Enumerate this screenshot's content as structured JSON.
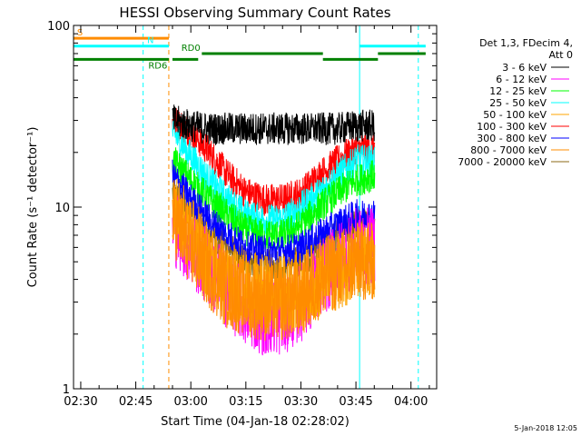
{
  "chart_data": {
    "type": "line",
    "title": "HESSI Observing Summary Count Rates",
    "xlabel": "Start Time (04-Jan-18 02:28:02)",
    "ylabel": "Count Rate (s⁻¹ detector⁻¹)",
    "xlim": [
      "02:28:02",
      "04:07:00"
    ],
    "ylim": [
      1,
      100
    ],
    "y_scale": "log",
    "x_ticks": [
      "02:30",
      "02:45",
      "03:00",
      "03:15",
      "03:30",
      "03:45",
      "04:00"
    ],
    "y_ticks": [
      {
        "value": 1,
        "label": "1"
      },
      {
        "value": 10,
        "label": "10"
      },
      {
        "value": 100,
        "label": "100"
      }
    ],
    "legend_header": [
      "Det 1,3, FDecim 4,",
      "Att 0"
    ],
    "legend_position": "right",
    "series": [
      {
        "name": "3 - 6 keV",
        "color": "#000000",
        "x": [
          "02:55",
          "03:00",
          "03:05",
          "03:10",
          "03:15",
          "03:20",
          "03:25",
          "03:30",
          "03:35",
          "03:40",
          "03:45",
          "03:50"
        ],
        "values": [
          30,
          28,
          27,
          27,
          27,
          27,
          27,
          27,
          27,
          27,
          28,
          28
        ]
      },
      {
        "name": "6 - 12 keV",
        "color": "#ff00ff",
        "x": [
          "02:55",
          "03:00",
          "03:05",
          "03:10",
          "03:15",
          "03:20",
          "03:25",
          "03:30",
          "03:35",
          "03:40",
          "03:45",
          "03:50"
        ],
        "values": [
          8,
          6,
          4.5,
          3.5,
          2.8,
          2.5,
          2.5,
          3,
          4,
          5,
          6,
          6
        ]
      },
      {
        "name": "12 - 25 keV",
        "color": "#00ff00",
        "x": [
          "02:55",
          "03:00",
          "03:05",
          "03:10",
          "03:15",
          "03:20",
          "03:25",
          "03:30",
          "03:35",
          "03:40",
          "03:45",
          "03:50"
        ],
        "values": [
          18,
          14,
          11,
          9,
          7.5,
          7,
          7,
          8,
          10,
          12,
          14,
          15
        ]
      },
      {
        "name": "25 - 50 keV",
        "color": "#00ffff",
        "x": [
          "02:55",
          "03:00",
          "03:05",
          "03:10",
          "03:15",
          "03:20",
          "03:25",
          "03:30",
          "03:35",
          "03:40",
          "03:45",
          "03:50"
        ],
        "values": [
          26,
          19,
          14,
          11,
          9,
          8.5,
          8.5,
          10,
          12,
          15,
          18,
          18
        ]
      },
      {
        "name": "50 - 100 keV",
        "color": "#ffa500",
        "x": [
          "02:55",
          "03:00",
          "03:05",
          "03:10",
          "03:15",
          "03:20",
          "03:25",
          "03:30",
          "03:35",
          "03:40",
          "03:45",
          "03:50"
        ],
        "values": [
          10,
          7,
          5,
          4,
          3.5,
          3.3,
          3.3,
          3.5,
          4,
          4.5,
          5,
          5
        ]
      },
      {
        "name": "100 - 300 keV",
        "color": "#ff0000",
        "x": [
          "02:55",
          "03:00",
          "03:05",
          "03:10",
          "03:15",
          "03:20",
          "03:25",
          "03:30",
          "03:35",
          "03:40",
          "03:45",
          "03:50"
        ],
        "values": [
          30,
          26,
          20,
          15,
          12,
          11,
          11,
          12,
          15,
          18,
          21,
          21
        ]
      },
      {
        "name": "300 - 800 keV",
        "color": "#0000ff",
        "x": [
          "02:55",
          "03:00",
          "03:05",
          "03:10",
          "03:15",
          "03:20",
          "03:25",
          "03:30",
          "03:35",
          "03:40",
          "03:45",
          "03:50"
        ],
        "values": [
          15,
          11,
          8.5,
          7,
          6,
          5.7,
          5.7,
          6,
          7,
          8,
          9,
          9
        ]
      },
      {
        "name": "800 - 7000 keV",
        "color": "#ff8c00",
        "x": [
          "02:55",
          "03:00",
          "03:05",
          "03:10",
          "03:15",
          "03:20",
          "03:25",
          "03:30",
          "03:35",
          "03:40",
          "03:45",
          "03:50"
        ],
        "values": [
          9,
          6,
          4.5,
          3.5,
          3.2,
          3,
          3,
          3.2,
          4,
          4.5,
          5,
          5
        ]
      },
      {
        "name": "7000 - 20000 keV",
        "color": "#8b6914",
        "x": [
          "02:55",
          "03:00",
          "03:05",
          "03:10",
          "03:15",
          "03:20",
          "03:25",
          "03:30",
          "03:35",
          "03:40",
          "03:45",
          "03:50"
        ],
        "values": [
          12,
          9,
          7,
          6,
          5,
          4.8,
          4.8,
          5,
          6,
          7,
          8,
          8
        ]
      }
    ],
    "flag_bars": [
      {
        "label": "S",
        "color": "#ff8c00",
        "value": 85,
        "segments": [
          [
            "02:28:02",
            "02:54"
          ]
        ]
      },
      {
        "label": "N",
        "color": "#00ffff",
        "value": 77,
        "segments": [
          [
            "02:28:02",
            "02:54"
          ],
          [
            "03:46",
            "04:04"
          ]
        ]
      },
      {
        "label": "RD0",
        "color": "#008000",
        "value": 70,
        "segments": [
          [
            "03:03",
            "03:36"
          ],
          [
            "03:51",
            "04:04"
          ]
        ]
      },
      {
        "label": "RD6",
        "color": "#008000",
        "value": 65,
        "segments": [
          [
            "02:28:02",
            "02:54"
          ],
          [
            "02:55",
            "03:02"
          ],
          [
            "03:36",
            "03:51"
          ]
        ]
      }
    ],
    "vertical_markers": [
      {
        "time": "02:28:02",
        "color": "#00ffff",
        "style": "solid"
      },
      {
        "time": "02:47",
        "color": "#00ffff",
        "style": "dashed"
      },
      {
        "time": "02:54",
        "color": "#ff8c00",
        "style": "dashed"
      },
      {
        "time": "03:46",
        "color": "#00ffff",
        "style": "solid"
      },
      {
        "time": "04:02",
        "color": "#00ffff",
        "style": "dashed"
      }
    ]
  },
  "footer_date": "5-Jan-2018 12:05"
}
